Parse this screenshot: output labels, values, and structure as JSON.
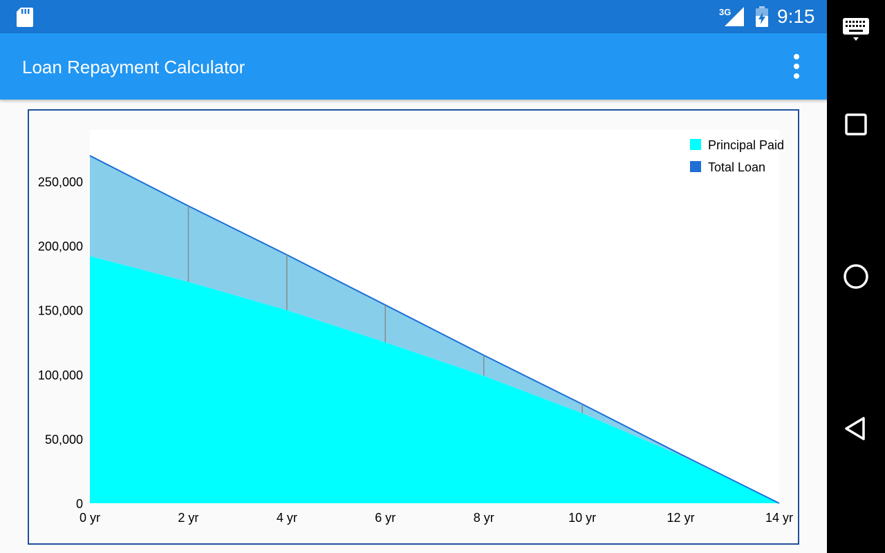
{
  "status_bar": {
    "network": "3G",
    "time": "9:15"
  },
  "app_bar": {
    "title": "Loan Repayment Calculator",
    "menu_icon": "overflow-menu-icon"
  },
  "navigation": {
    "icons": [
      "keyboard-icon",
      "recents-icon",
      "home-icon",
      "back-icon"
    ]
  },
  "colors": {
    "status_bar": "#1976d2",
    "app_bar": "#2196f3",
    "principal_paid": "#00ffff",
    "total_loan_line": "#1e6fd6",
    "total_loan_fill": "#87ceeb",
    "frame": "#1f4f9a"
  },
  "chart_data": {
    "type": "area",
    "x": [
      0,
      2,
      4,
      6,
      8,
      10,
      12,
      14
    ],
    "xtick_labels": [
      "0 yr",
      "2 yr",
      "4 yr",
      "6 yr",
      "8 yr",
      "10 yr",
      "12 yr",
      "14 yr"
    ],
    "ytick_values": [
      0,
      50000,
      100000,
      150000,
      200000,
      250000
    ],
    "ytick_labels": [
      "0",
      "50,000",
      "100,000",
      "150,000",
      "200,000",
      "250,000"
    ],
    "ylim": [
      0,
      290000
    ],
    "xlim": [
      0,
      14
    ],
    "legend_position": "top-right",
    "series": [
      {
        "name": "Principal Paid",
        "values": [
          192000,
          172000,
          150000,
          125000,
          99000,
          70000,
          37000,
          0
        ]
      },
      {
        "name": "Total Loan",
        "values": [
          270000,
          231000,
          193000,
          154000,
          115000,
          77000,
          38000,
          0
        ]
      }
    ]
  }
}
